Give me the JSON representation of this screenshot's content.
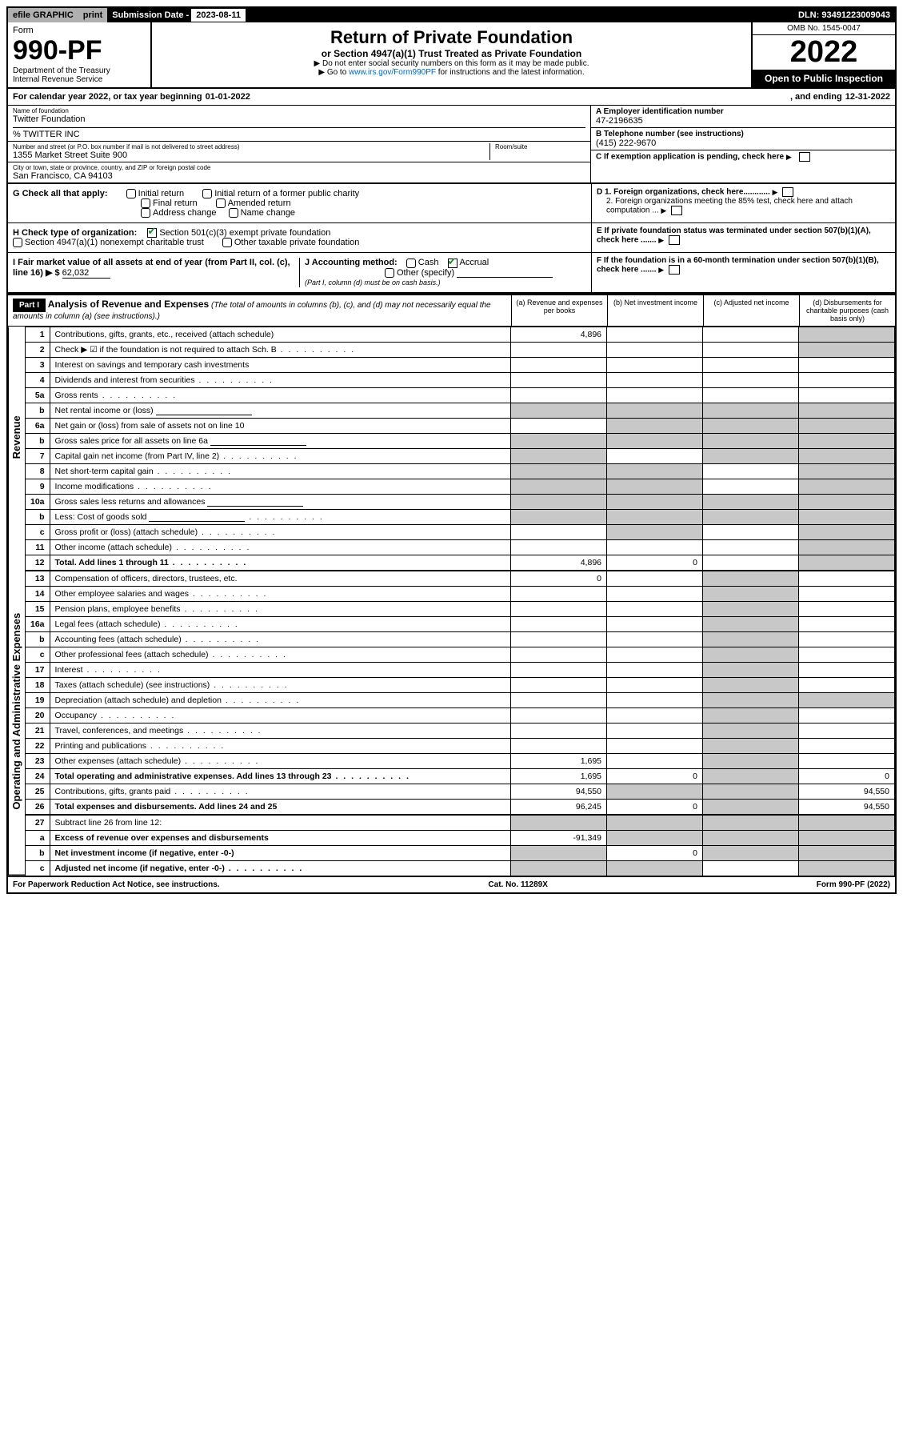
{
  "topbar": {
    "efile": "efile GRAPHIC",
    "print": "print",
    "subdate_label": "Submission Date - ",
    "subdate_val": "2023-08-11",
    "dln": "DLN: 93491223009043"
  },
  "header": {
    "form_label": "Form",
    "form_no": "990-PF",
    "dept": "Department of the Treasury",
    "irs": "Internal Revenue Service",
    "title": "Return of Private Foundation",
    "subtitle": "or Section 4947(a)(1) Trust Treated as Private Foundation",
    "instr1": "▶ Do not enter social security numbers on this form as it may be made public.",
    "instr2_pre": "▶ Go to ",
    "instr2_link": "www.irs.gov/Form990PF",
    "instr2_post": " for instructions and the latest information.",
    "omb": "OMB No. 1545-0047",
    "year": "2022",
    "open": "Open to Public Inspection"
  },
  "calyear": {
    "pre": "For calendar year 2022, or tax year beginning ",
    "begin": "01-01-2022",
    "mid": ", and ending ",
    "end": "12-31-2022"
  },
  "id": {
    "name_label": "Name of foundation",
    "name": "Twitter Foundation",
    "co": "% TWITTER INC",
    "addr_label": "Number and street (or P.O. box number if mail is not delivered to street address)",
    "addr": "1355 Market Street Suite 900",
    "room_label": "Room/suite",
    "city_label": "City or town, state or province, country, and ZIP or foreign postal code",
    "city": "San Francisco, CA  94103",
    "ein_label": "A Employer identification number",
    "ein": "47-2196635",
    "phone_label": "B Telephone number (see instructions)",
    "phone": "(415) 222-9670",
    "c_label": "C If exemption application is pending, check here"
  },
  "g": {
    "label": "G Check all that apply:",
    "initial": "Initial return",
    "final": "Final return",
    "addr_change": "Address change",
    "initial_former": "Initial return of a former public charity",
    "amended": "Amended return",
    "name_change": "Name change"
  },
  "d": {
    "d1": "D 1. Foreign organizations, check here............",
    "d2": "2. Foreign organizations meeting the 85% test, check here and attach computation ..."
  },
  "h": {
    "label": "H Check type of organization:",
    "s501": "Section 501(c)(3) exempt private foundation",
    "s4947": "Section 4947(a)(1) nonexempt charitable trust",
    "other_tax": "Other taxable private foundation"
  },
  "e": {
    "label": "E If private foundation status was terminated under section 507(b)(1)(A), check here ......."
  },
  "i": {
    "label": "I Fair market value of all assets at end of year (from Part II, col. (c), line 16) ▶ $",
    "val": "62,032"
  },
  "j": {
    "label": "J Accounting method:",
    "cash": "Cash",
    "accrual": "Accrual",
    "other": "Other (specify)",
    "note": "(Part I, column (d) must be on cash basis.)"
  },
  "f": {
    "label": "F If the foundation is in a 60-month termination under section 507(b)(1)(B), check here ......."
  },
  "part1": {
    "label": "Part I",
    "title": "Analysis of Revenue and Expenses",
    "subtitle": "(The total of amounts in columns (b), (c), and (d) may not necessarily equal the amounts in column (a) (see instructions).)",
    "col_a": "(a)  Revenue and expenses per books",
    "col_b": "(b)  Net investment income",
    "col_c": "(c)  Adjusted net income",
    "col_d": "(d)  Disbursements for charitable purposes (cash basis only)"
  },
  "rows": [
    {
      "no": "1",
      "desc": "Contributions, gifts, grants, etc., received (attach schedule)",
      "a": "4,896",
      "b": "",
      "c": "",
      "d": "",
      "d_gray": true
    },
    {
      "no": "2",
      "desc": "Check ▶ ☑ if the foundation is not required to attach Sch. B",
      "dots": true,
      "d_gray": true
    },
    {
      "no": "3",
      "desc": "Interest on savings and temporary cash investments"
    },
    {
      "no": "4",
      "desc": "Dividends and interest from securities",
      "dots": true
    },
    {
      "no": "5a",
      "desc": "Gross rents",
      "dots": true
    },
    {
      "no": "b",
      "desc": "Net rental income or (loss)",
      "inline": true,
      "b_gray": true,
      "c_gray": true,
      "d_gray": true,
      "a_gray": true
    },
    {
      "no": "6a",
      "desc": "Net gain or (loss) from sale of assets not on line 10",
      "b_gray": true,
      "c_gray": true,
      "d_gray": true
    },
    {
      "no": "b",
      "desc": "Gross sales price for all assets on line 6a",
      "inline": true,
      "a_gray": true,
      "b_gray": true,
      "c_gray": true,
      "d_gray": true
    },
    {
      "no": "7",
      "desc": "Capital gain net income (from Part IV, line 2)",
      "dots": true,
      "a_gray": true,
      "c_gray": true,
      "d_gray": true
    },
    {
      "no": "8",
      "desc": "Net short-term capital gain",
      "dots": true,
      "a_gray": true,
      "b_gray": true,
      "d_gray": true
    },
    {
      "no": "9",
      "desc": "Income modifications",
      "dots": true,
      "a_gray": true,
      "b_gray": true,
      "d_gray": true
    },
    {
      "no": "10a",
      "desc": "Gross sales less returns and allowances",
      "inline": true,
      "a_gray": true,
      "b_gray": true,
      "c_gray": true,
      "d_gray": true
    },
    {
      "no": "b",
      "desc": "Less: Cost of goods sold",
      "dots": true,
      "inline": true,
      "a_gray": true,
      "b_gray": true,
      "c_gray": true,
      "d_gray": true
    },
    {
      "no": "c",
      "desc": "Gross profit or (loss) (attach schedule)",
      "dots": true,
      "b_gray": true,
      "d_gray": true
    },
    {
      "no": "11",
      "desc": "Other income (attach schedule)",
      "dots": true,
      "d_gray": true
    },
    {
      "no": "12",
      "desc": "Total. Add lines 1 through 11",
      "bold": true,
      "dots": true,
      "a": "4,896",
      "b": "0",
      "d_gray": true
    },
    {
      "no": "13",
      "desc": "Compensation of officers, directors, trustees, etc.",
      "a": "0",
      "c_gray": true
    },
    {
      "no": "14",
      "desc": "Other employee salaries and wages",
      "dots": true,
      "c_gray": true
    },
    {
      "no": "15",
      "desc": "Pension plans, employee benefits",
      "dots": true,
      "c_gray": true
    },
    {
      "no": "16a",
      "desc": "Legal fees (attach schedule)",
      "dots": true,
      "c_gray": true
    },
    {
      "no": "b",
      "desc": "Accounting fees (attach schedule)",
      "dots": true,
      "c_gray": true
    },
    {
      "no": "c",
      "desc": "Other professional fees (attach schedule)",
      "dots": true,
      "c_gray": true
    },
    {
      "no": "17",
      "desc": "Interest",
      "dots": true,
      "c_gray": true
    },
    {
      "no": "18",
      "desc": "Taxes (attach schedule) (see instructions)",
      "dots": true,
      "c_gray": true
    },
    {
      "no": "19",
      "desc": "Depreciation (attach schedule) and depletion",
      "dots": true,
      "c_gray": true,
      "d_gray": true
    },
    {
      "no": "20",
      "desc": "Occupancy",
      "dots": true,
      "c_gray": true
    },
    {
      "no": "21",
      "desc": "Travel, conferences, and meetings",
      "dots": true,
      "c_gray": true
    },
    {
      "no": "22",
      "desc": "Printing and publications",
      "dots": true,
      "c_gray": true
    },
    {
      "no": "23",
      "desc": "Other expenses (attach schedule)",
      "dots": true,
      "a": "1,695",
      "c_gray": true
    },
    {
      "no": "24",
      "desc": "Total operating and administrative expenses. Add lines 13 through 23",
      "bold": true,
      "dots": true,
      "a": "1,695",
      "b": "0",
      "d": "0",
      "c_gray": true
    },
    {
      "no": "25",
      "desc": "Contributions, gifts, grants paid",
      "dots": true,
      "a": "94,550",
      "d": "94,550",
      "b_gray": true,
      "c_gray": true
    },
    {
      "no": "26",
      "desc": "Total expenses and disbursements. Add lines 24 and 25",
      "bold": true,
      "a": "96,245",
      "b": "0",
      "d": "94,550",
      "c_gray": true
    },
    {
      "no": "27",
      "desc": "Subtract line 26 from line 12:",
      "a_gray": true,
      "b_gray": true,
      "c_gray": true,
      "d_gray": true
    },
    {
      "no": "a",
      "desc": "Excess of revenue over expenses and disbursements",
      "bold": true,
      "a": "-91,349",
      "b_gray": true,
      "c_gray": true,
      "d_gray": true
    },
    {
      "no": "b",
      "desc": "Net investment income (if negative, enter -0-)",
      "bold": true,
      "a_gray": true,
      "b": "0",
      "c_gray": true,
      "d_gray": true
    },
    {
      "no": "c",
      "desc": "Adjusted net income (if negative, enter -0-)",
      "bold": true,
      "dots": true,
      "a_gray": true,
      "b_gray": true,
      "d_gray": true
    }
  ],
  "side_labels": {
    "revenue": "Revenue",
    "expenses": "Operating and Administrative Expenses"
  },
  "footer": {
    "left": "For Paperwork Reduction Act Notice, see instructions.",
    "mid": "Cat. No. 11289X",
    "right": "Form 990-PF (2022)"
  },
  "colors": {
    "check_green": "#1a8f2d",
    "link_blue": "#0066cc",
    "gray_fill": "#c8c8c8",
    "topbar_gray": "#b0b0b0"
  }
}
